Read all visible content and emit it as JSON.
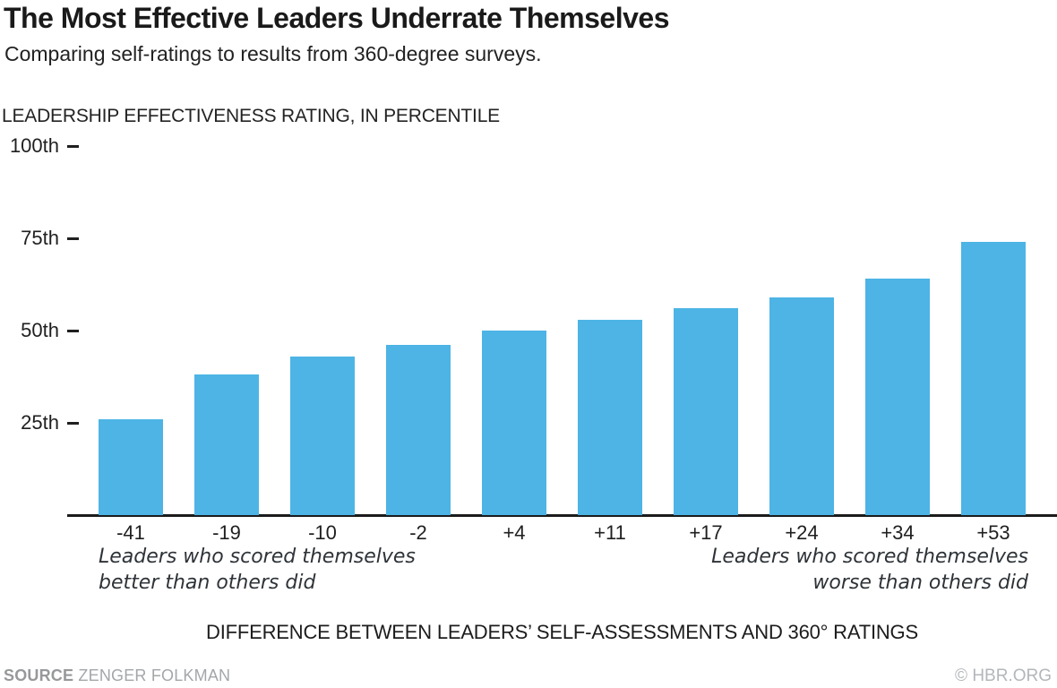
{
  "title": "The Most Effective Leaders Underrate Themselves",
  "subtitle": "Comparing self-ratings to results from 360-degree surveys.",
  "y_axis_caption": "LEADERSHIP EFFECTIVENESS RATING, IN PERCENTILE",
  "x_axis_title": "DIFFERENCE BETWEEN LEADERS’ SELF-ASSESSMENTS AND 360° RATINGS",
  "annotations": {
    "left": [
      "Leaders who scored themselves",
      "better than others did"
    ],
    "right": [
      "Leaders who scored themselves",
      "worse than others did"
    ]
  },
  "footer": {
    "source_label": "SOURCE",
    "source_name": "ZENGER FOLKMAN",
    "copyright": "© HBR.ORG"
  },
  "colors": {
    "bar": "#4db4e5",
    "axis": "#1b1b1b"
  },
  "chart_data": {
    "type": "bar",
    "title": "The Most Effective Leaders Underrate Themselves",
    "subtitle": "Comparing self-ratings to results from 360-degree surveys.",
    "categories": [
      "-41",
      "-19",
      "-10",
      "-2",
      "+4",
      "+11",
      "+17",
      "+24",
      "+34",
      "+53"
    ],
    "values": [
      26,
      38,
      43,
      46,
      50,
      53,
      56,
      59,
      64,
      74
    ],
    "xlabel": "DIFFERENCE BETWEEN LEADERS’ SELF-ASSESSMENTS AND 360° RATINGS",
    "ylabel": "LEADERSHIP EFFECTIVENESS RATING, IN PERCENTILE",
    "ylim": [
      0,
      100
    ],
    "y_ticks": [
      {
        "label": "100th",
        "value": 100
      },
      {
        "label": "75th",
        "value": 75
      },
      {
        "label": "50th",
        "value": 50
      },
      {
        "label": "25th",
        "value": 25
      }
    ],
    "grid": false,
    "legend": false,
    "bar_color": "#4db4e5"
  }
}
